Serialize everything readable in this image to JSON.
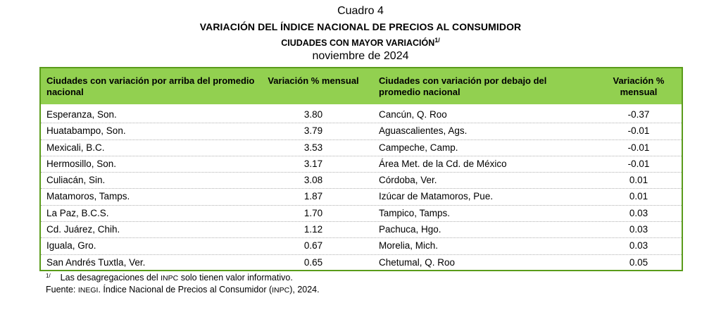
{
  "header": {
    "label": "Cuadro 4",
    "title": "VARIACIÓN DEL ÍNDICE NACIONAL DE PRECIOS AL CONSUMIDOR",
    "subtitle": "CIUDADES CON MAYOR VARIACIÓN",
    "subtitle_note_mark": "1/",
    "period": "noviembre de 2024"
  },
  "table": {
    "columns": [
      "Ciudades con variación por arriba del promedio nacional",
      "Variación % mensual",
      "Ciudades con variación por debajo del promedio nacional",
      "Variación % mensual"
    ],
    "rows": [
      [
        "Esperanza, Son.",
        "3.80",
        "Cancún, Q. Roo",
        "-0.37"
      ],
      [
        "Huatabampo, Son.",
        "3.79",
        "Aguascalientes, Ags.",
        "-0.01"
      ],
      [
        "Mexicali, B.C.",
        "3.53",
        "Campeche, Camp.",
        "-0.01"
      ],
      [
        "Hermosillo, Son.",
        "3.17",
        "Área Met. de la Cd. de México",
        "-0.01"
      ],
      [
        "Culiacán, Sin.",
        "3.08",
        "Córdoba, Ver.",
        "0.01"
      ],
      [
        "Matamoros, Tamps.",
        "1.87",
        "Izúcar de Matamoros, Pue.",
        "0.01"
      ],
      [
        "La Paz, B.C.S.",
        "1.70",
        "Tampico, Tamps.",
        "0.03"
      ],
      [
        "Cd. Juárez, Chih.",
        "1.12",
        "Pachuca, Hgo.",
        "0.03"
      ],
      [
        "Iguala, Gro.",
        "0.67",
        "Morelia, Mich.",
        "0.03"
      ],
      [
        "San Andrés Tuxtla, Ver.",
        "0.65",
        "Chetumal, Q. Roo",
        "0.05"
      ]
    ]
  },
  "notes": {
    "footnote_mark": "1/",
    "footnote_text_a": "Las desagregaciones del ",
    "footnote_abbr": "INPC",
    "footnote_text_b": " solo tienen valor informativo.",
    "source_a": "Fuente: ",
    "source_abbr1": "INEGI",
    "source_b": ". Índice Nacional de Precios al Consumidor (",
    "source_abbr2": "INPC",
    "source_c": "), 2024."
  },
  "colors": {
    "header_fill": "#92d050",
    "border": "#5a9b1a"
  }
}
